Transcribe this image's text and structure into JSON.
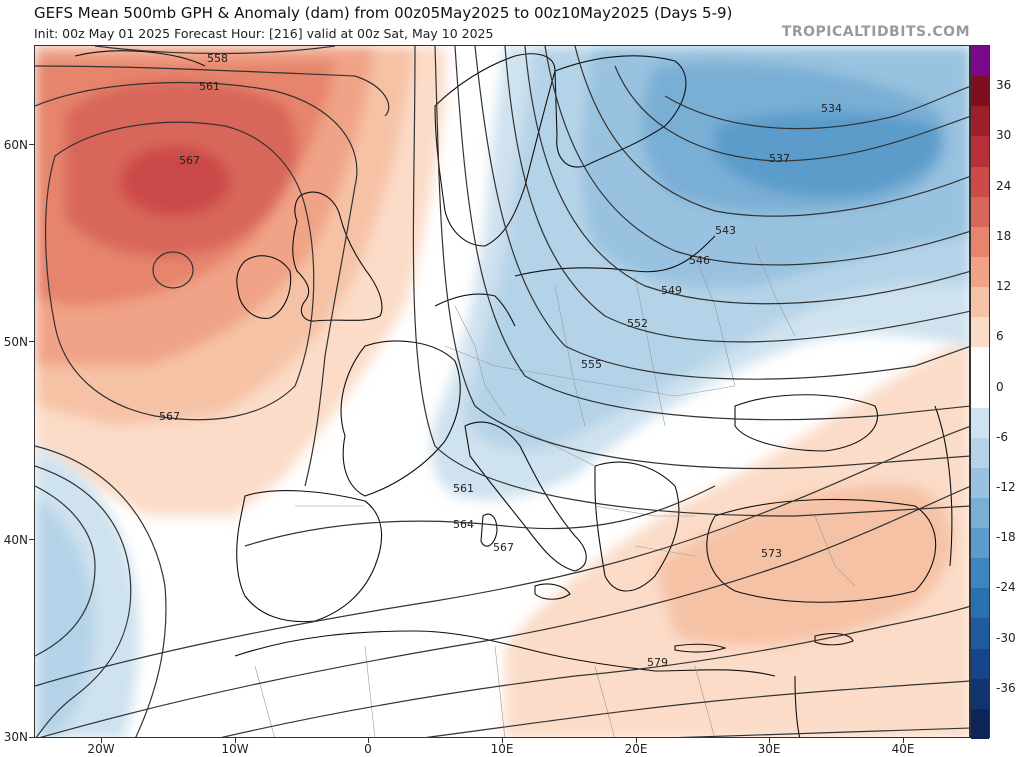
{
  "header": {
    "title": "GEFS Mean 500mb GPH & Anomaly (dam) from 00z05May2025 to 00z10May2025 (Days 5-9)",
    "subtitle": "Init: 00z May 01 2025   Forecast Hour: [216]   valid at 00z Sat, May 10 2025",
    "brand": "TROPICALTIDBITS.COM"
  },
  "map": {
    "lat_labels": [
      "60N",
      "50N",
      "40N",
      "30N"
    ],
    "lon_labels": [
      "20W",
      "10W",
      "0",
      "10E",
      "20E",
      "30E",
      "40E"
    ],
    "contour_labels": [
      "558",
      "561",
      "567",
      "567",
      "534",
      "537",
      "543",
      "546",
      "549",
      "552",
      "555",
      "561",
      "564",
      "567",
      "573",
      "579"
    ]
  },
  "colorbar": {
    "labels": [
      "36",
      "30",
      "24",
      "18",
      "12",
      "6",
      "0",
      "-6",
      "-12",
      "-18",
      "-24",
      "-30",
      "-36"
    ],
    "colors": [
      "#7a0a8a",
      "#7c1020",
      "#9c1f2a",
      "#b8303a",
      "#cc4a48",
      "#d8665a",
      "#e6846c",
      "#f0a386",
      "#f6c2a6",
      "#fbdcc8",
      "#ffffff",
      "#ffffff",
      "#cfe2ef",
      "#b5d3e8",
      "#98c2df",
      "#7aafd5",
      "#5c9ccb",
      "#3f86bf",
      "#2a70b0",
      "#1f5a9e",
      "#17458a",
      "#12346f",
      "#0c2556"
    ]
  }
}
